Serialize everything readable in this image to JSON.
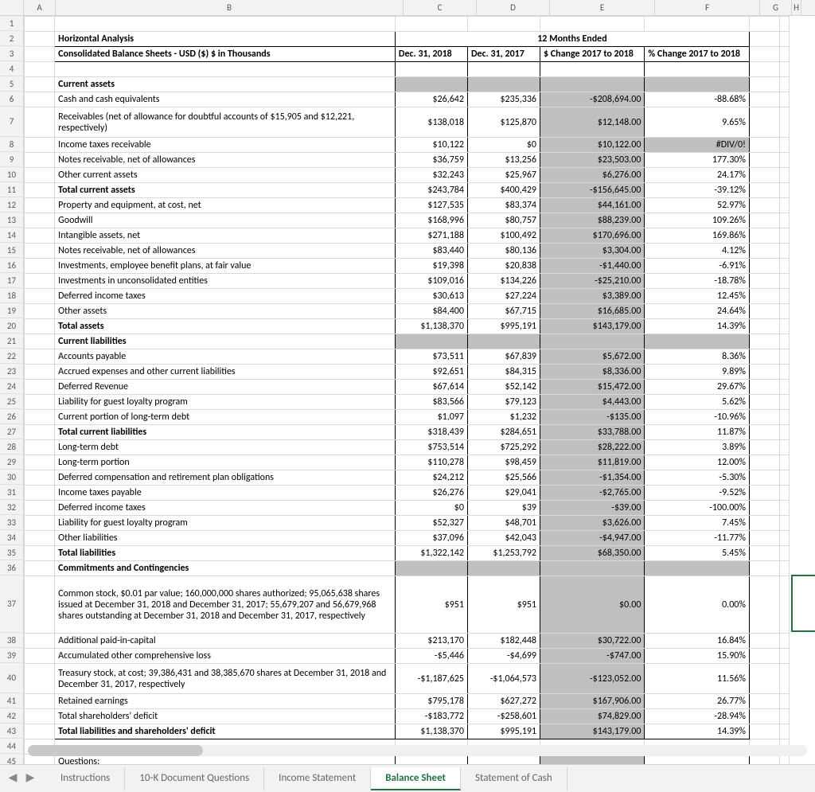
{
  "columns": {
    "widths": {
      "rownum": 30,
      "A": 40,
      "B": 437,
      "C": 92,
      "D": 92,
      "E": 132,
      "F": 132,
      "G": 40,
      "H": 12
    },
    "letters": [
      "A",
      "B",
      "C",
      "D",
      "E",
      "F",
      "G",
      "H"
    ]
  },
  "row_heights": {
    "default": 19,
    "r7": 38,
    "r37": 72,
    "r40": 38
  },
  "title_row": {
    "label": "Horizontal Analysis",
    "span_label": "12 Months Ended"
  },
  "header_row": {
    "b": "Consolidated Balance Sheets - USD ($) $ in Thousands",
    "c": "Dec. 31, 2018",
    "d": "Dec. 31, 2017",
    "e": "$ Change 2017 to 2018",
    "f": "% Change 2017 to 2018"
  },
  "rows": [
    {
      "n": 1
    },
    {
      "n": 2,
      "title": true
    },
    {
      "n": 3,
      "header": true
    },
    {
      "n": 4,
      "blank_border": true
    },
    {
      "n": 5,
      "b": "Current assets",
      "bold": true,
      "section": true
    },
    {
      "n": 6,
      "b": "Cash and cash equivalents",
      "c": "$26,642",
      "d": "$235,336",
      "e": "-$208,694.00",
      "f": "-88.68%"
    },
    {
      "n": 7,
      "b": "Receivables (net of allowance for doubtful accounts of $15,905 and $12,221, respectively)",
      "c": "$138,018",
      "d": "$125,870",
      "e": "$12,148.00",
      "f": "9.65%",
      "wrap": true
    },
    {
      "n": 8,
      "b": "Income taxes receivable",
      "c": "$10,122",
      "d": "$0",
      "e": "$10,122.00",
      "f": "#DIV/0!",
      "f_shade": true
    },
    {
      "n": 9,
      "b": "Notes receivable, net of allowances",
      "c": "$36,759",
      "d": "$13,256",
      "e": "$23,503.00",
      "f": "177.30%"
    },
    {
      "n": 10,
      "b": "Other current assets",
      "c": "$32,243",
      "d": "$25,967",
      "e": "$6,276.00",
      "f": "24.17%"
    },
    {
      "n": 11,
      "b": "Total current assets",
      "bold": true,
      "c": "$243,784",
      "d": "$400,429",
      "e": "-$156,645.00",
      "f": "-39.12%"
    },
    {
      "n": 12,
      "b": "Property and equipment, at cost, net",
      "c": "$127,535",
      "d": "$83,374",
      "e": "$44,161.00",
      "f": "52.97%"
    },
    {
      "n": 13,
      "b": "Goodwill",
      "c": "$168,996",
      "d": "$80,757",
      "e": "$88,239.00",
      "f": "109.26%"
    },
    {
      "n": 14,
      "b": "Intangible assets, net",
      "c": "$271,188",
      "d": "$100,492",
      "e": "$170,696.00",
      "f": "169.86%"
    },
    {
      "n": 15,
      "b": "Notes receivable, net of allowances",
      "c": "$83,440",
      "d": "$80,136",
      "e": "$3,304.00",
      "f": "4.12%"
    },
    {
      "n": 16,
      "b": "Investments, employee benefit plans, at fair value",
      "c": "$19,398",
      "d": "$20,838",
      "e": "-$1,440.00",
      "f": "-6.91%"
    },
    {
      "n": 17,
      "b": "Investments in unconsolidated entities",
      "c": "$109,016",
      "d": "$134,226",
      "e": "-$25,210.00",
      "f": "-18.78%"
    },
    {
      "n": 18,
      "b": "Deferred income taxes",
      "c": "$30,613",
      "d": "$27,224",
      "e": "$3,389.00",
      "f": "12.45%"
    },
    {
      "n": 19,
      "b": "Other assets",
      "c": "$84,400",
      "d": "$67,715",
      "e": "$16,685.00",
      "f": "24.64%"
    },
    {
      "n": 20,
      "b": "Total assets",
      "bold": true,
      "c": "$1,138,370",
      "d": "$995,191",
      "e": "$143,179.00",
      "f": "14.39%"
    },
    {
      "n": 21,
      "b": "Current liabilities",
      "bold": true,
      "section": true
    },
    {
      "n": 22,
      "b": "Accounts payable",
      "c": "$73,511",
      "d": "$67,839",
      "e": "$5,672.00",
      "f": "8.36%"
    },
    {
      "n": 23,
      "b": "Accrued expenses and other current liabilities",
      "c": "$92,651",
      "d": "$84,315",
      "e": "$8,336.00",
      "f": "9.89%"
    },
    {
      "n": 24,
      "b": "Deferred Revenue",
      "c": "$67,614",
      "d": "$52,142",
      "e": "$15,472.00",
      "f": "29.67%"
    },
    {
      "n": 25,
      "b": "Liability for guest loyalty program",
      "c": "$83,566",
      "d": "$79,123",
      "e": "$4,443.00",
      "f": "5.62%"
    },
    {
      "n": 26,
      "b": "Current portion of long-term debt",
      "c": "$1,097",
      "d": "$1,232",
      "e": "-$135.00",
      "f": "-10.96%"
    },
    {
      "n": 27,
      "b": "Total current liabilities",
      "bold": true,
      "c": "$318,439",
      "d": "$284,651",
      "e": "$33,788.00",
      "f": "11.87%"
    },
    {
      "n": 28,
      "b": "Long-term debt",
      "c": "$753,514",
      "d": "$725,292",
      "e": "$28,222.00",
      "f": "3.89%"
    },
    {
      "n": 29,
      "b": "Long-term portion",
      "c": "$110,278",
      "d": "$98,459",
      "e": "$11,819.00",
      "f": "12.00%"
    },
    {
      "n": 30,
      "b": "Deferred compensation and retirement plan obligations",
      "c": "$24,212",
      "d": "$25,566",
      "e": "-$1,354.00",
      "f": "-5.30%"
    },
    {
      "n": 31,
      "b": "Income taxes payable",
      "c": "$26,276",
      "d": "$29,041",
      "e": "-$2,765.00",
      "f": "-9.52%"
    },
    {
      "n": 32,
      "b": "Deferred income taxes",
      "c": "$0",
      "d": "$39",
      "e": "-$39.00",
      "f": "-100.00%"
    },
    {
      "n": 33,
      "b": "Liability for guest loyalty program",
      "c": "$52,327",
      "d": "$48,701",
      "e": "$3,626.00",
      "f": "7.45%"
    },
    {
      "n": 34,
      "b": "Other liabilities",
      "c": "$37,096",
      "d": "$42,043",
      "e": "-$4,947.00",
      "f": "-11.77%"
    },
    {
      "n": 35,
      "b": "Total liabilities",
      "bold": true,
      "c": "$1,322,142",
      "d": "$1,253,792",
      "e": "$68,350.00",
      "f": "5.45%"
    },
    {
      "n": 36,
      "b": "Commitments and Contingencies",
      "bold": true,
      "section": true
    },
    {
      "n": 37,
      "b": "Common stock, $0.01 par value; 160,000,000 shares authorized; 95,065,638 shares issued at December 31, 2018 and December 31, 2017; 55,679,207 and 56,679,968 shares outstanding at December 31, 2018 and December 31, 2017, respectively",
      "c": "$951",
      "d": "$951",
      "e": "$0.00",
      "f": "0.00%",
      "wrap": true
    },
    {
      "n": 38,
      "b": "Additional paid-in-capital",
      "c": "$213,170",
      "d": "$182,448",
      "e": "$30,722.00",
      "f": "16.84%"
    },
    {
      "n": 39,
      "b": "Accumulated other comprehensive loss",
      "c": "-$5,446",
      "d": "-$4,699",
      "e": "-$747.00",
      "f": "15.90%"
    },
    {
      "n": 40,
      "b": "Treasury stock, at cost; 39,386,431 and 38,385,670 shares at December 31, 2018 and December 31, 2017, respectively",
      "c": "-$1,187,625",
      "d": "-$1,064,573",
      "e": "-$123,052.00",
      "f": "11.56%",
      "wrap": true
    },
    {
      "n": 41,
      "b": "Retained earnings",
      "c": "$795,178",
      "d": "$627,272",
      "e": "$167,906.00",
      "f": "26.77%"
    },
    {
      "n": 42,
      "b": "Total shareholders' deficit",
      "c": "-$183,772",
      "d": "-$258,601",
      "e": "$74,829.00",
      "f": "-28.94%"
    },
    {
      "n": 43,
      "b": "Total liabilities and shareholders' deficit",
      "bold": true,
      "c": "$1,138,370",
      "d": "$995,191",
      "e": "$143,179.00",
      "f": "14.39%",
      "last": true
    },
    {
      "n": 44
    },
    {
      "n": 45,
      "b": "Questions:"
    }
  ],
  "tabs": {
    "items": [
      "Instructions",
      "10-K Document Questions",
      "Income Statement",
      "Balance Sheet",
      "Statement of Cash"
    ],
    "active": 3
  },
  "colors": {
    "shade": "#bfbfbf",
    "accent": "#217346",
    "grid": "#d9d9d9",
    "header_bg": "#f3f2f1",
    "border_dark": "#000"
  },
  "selection": {
    "cell": "H37"
  }
}
